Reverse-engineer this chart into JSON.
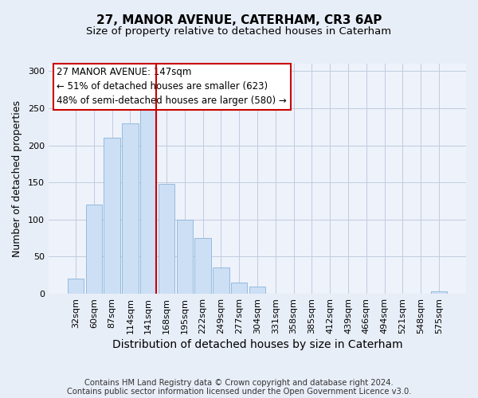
{
  "title": "27, MANOR AVENUE, CATERHAM, CR3 6AP",
  "subtitle": "Size of property relative to detached houses in Caterham",
  "xlabel": "Distribution of detached houses by size in Caterham",
  "ylabel": "Number of detached properties",
  "bar_labels": [
    "32sqm",
    "60sqm",
    "87sqm",
    "114sqm",
    "141sqm",
    "168sqm",
    "195sqm",
    "222sqm",
    "249sqm",
    "277sqm",
    "304sqm",
    "331sqm",
    "358sqm",
    "385sqm",
    "412sqm",
    "439sqm",
    "466sqm",
    "494sqm",
    "521sqm",
    "548sqm",
    "575sqm"
  ],
  "bar_values": [
    20,
    120,
    210,
    230,
    250,
    148,
    100,
    75,
    35,
    15,
    10,
    0,
    0,
    0,
    0,
    0,
    0,
    0,
    0,
    0,
    3
  ],
  "bar_color": "#ccdff5",
  "bar_edge_color": "#8ab4d8",
  "vline_color": "#cc0000",
  "vline_bar_index": 4,
  "annotation_title": "27 MANOR AVENUE: 147sqm",
  "annotation_line1": "← 51% of detached houses are smaller (623)",
  "annotation_line2": "48% of semi-detached houses are larger (580) →",
  "annotation_box_facecolor": "white",
  "annotation_box_edgecolor": "#cc0000",
  "ylim": [
    0,
    310
  ],
  "yticks": [
    0,
    50,
    100,
    150,
    200,
    250,
    300
  ],
  "footer1": "Contains HM Land Registry data © Crown copyright and database right 2024.",
  "footer2": "Contains public sector information licensed under the Open Government Licence v3.0.",
  "bg_color": "#e8eef8",
  "plot_bg_color": "#eef2fa",
  "grid_color": "#c0cce0",
  "title_fontsize": 11,
  "subtitle_fontsize": 9.5,
  "xlabel_fontsize": 10,
  "ylabel_fontsize": 9,
  "tick_fontsize": 8,
  "annotation_fontsize": 8.5,
  "footer_fontsize": 7.2
}
